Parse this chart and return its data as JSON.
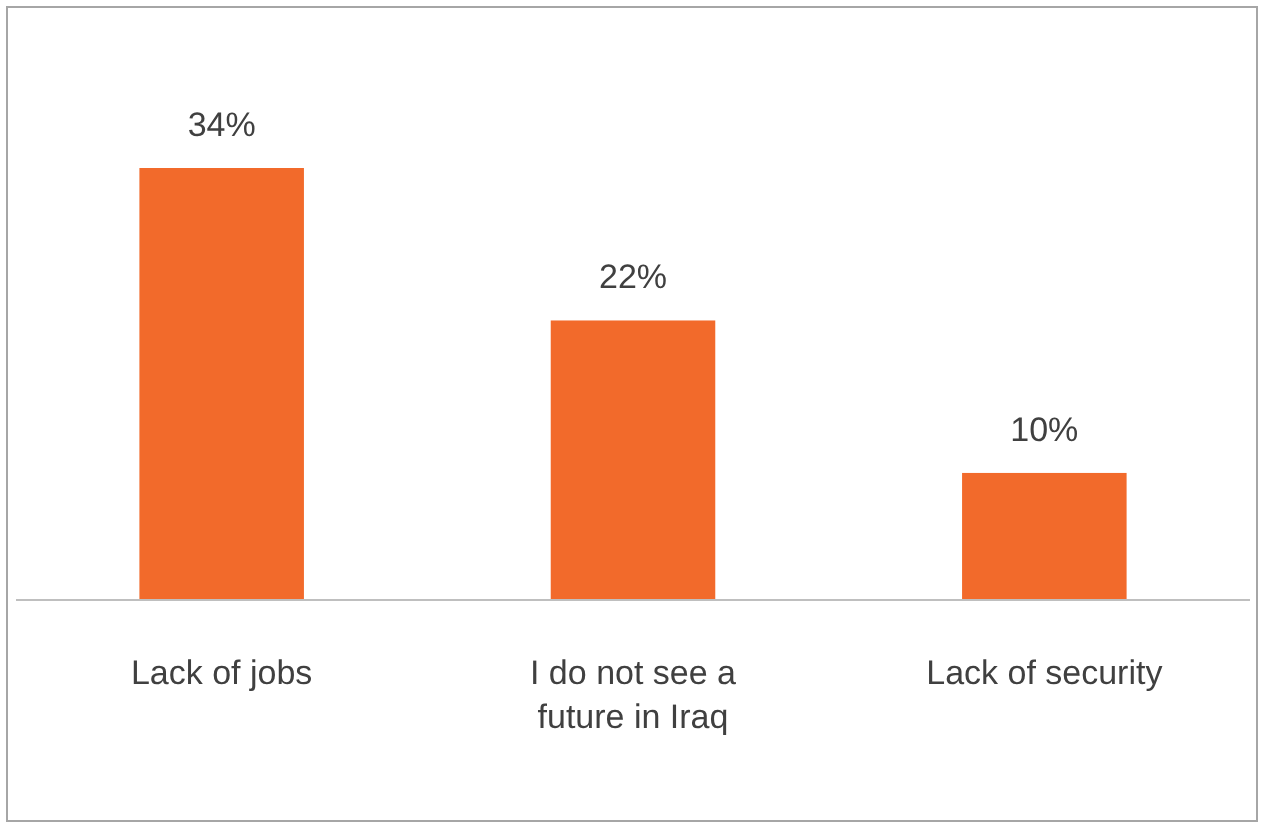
{
  "chart_data": {
    "type": "bar",
    "categories": [
      "Lack of jobs",
      "I do not see a future in Iraq",
      "Lack of security"
    ],
    "values": [
      34,
      22,
      10
    ],
    "value_labels": [
      "34%",
      "22%",
      "10%"
    ],
    "color": "#f26a2b",
    "tick_labels": "x"
  }
}
